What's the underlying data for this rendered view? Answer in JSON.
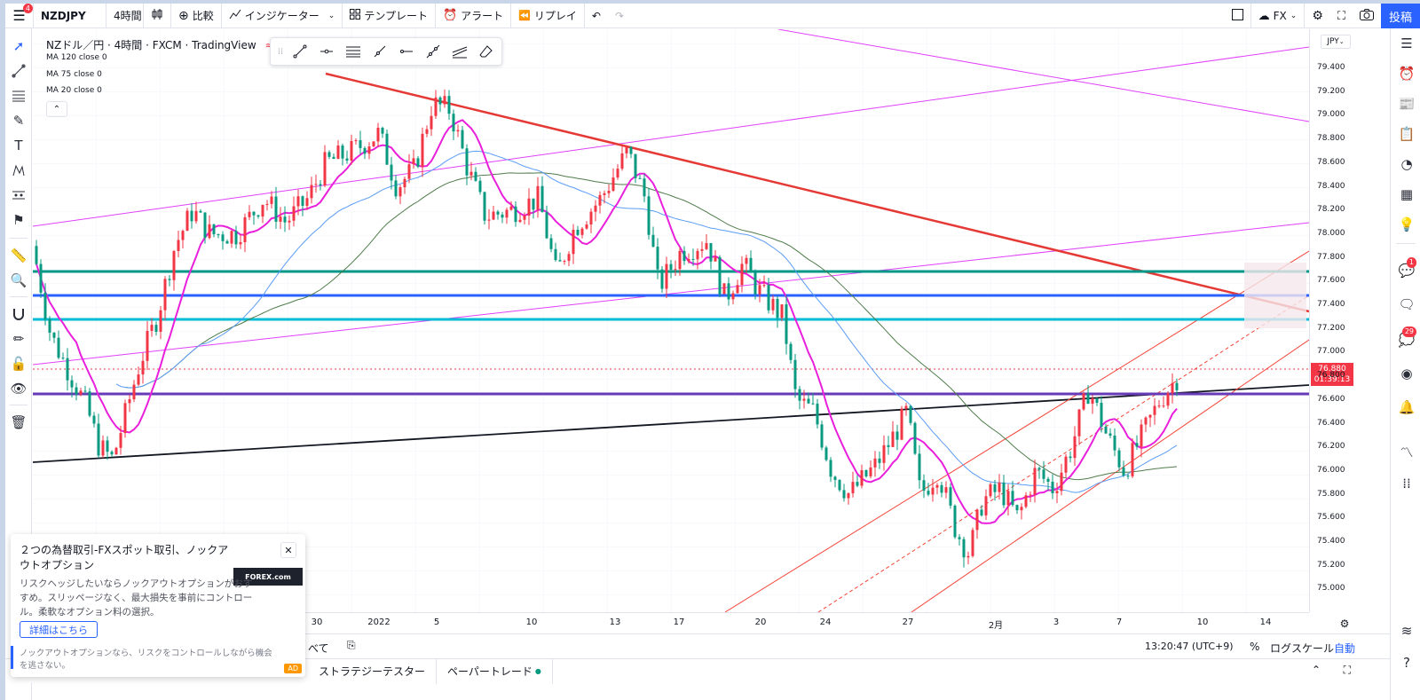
{
  "app": {
    "symbol": "NZDJPY",
    "timeframe": "4時間",
    "menu_badge": "4"
  },
  "toolbar": {
    "compare": "比較",
    "indicators": "インジケーター",
    "templates": "テンプレート",
    "alerts": "アラート",
    "replay": "リプレイ",
    "fx": "FX",
    "publish": "投稿"
  },
  "legend": {
    "title": "NZドル／円 · 4時間 · FXCM · TradingView",
    "ma1": "MA 120 close 0",
    "ma2": "MA 75 close 0",
    "ma3": "MA 20 close 0"
  },
  "price_axis": {
    "currency": "JPY",
    "ticks": [
      "79.400",
      "79.200",
      "79.000",
      "78.800",
      "78.600",
      "78.400",
      "78.200",
      "78.000",
      "77.800",
      "77.600",
      "77.400",
      "77.200",
      "77.000",
      "76.800",
      "76.600",
      "76.400",
      "76.200",
      "76.000",
      "75.800",
      "75.600",
      "75.400",
      "75.200",
      "75.000"
    ],
    "current_price": "76.880",
    "countdown": "01:39:13"
  },
  "time_axis": {
    "ticks": [
      "30",
      "2022",
      "5",
      "10",
      "13",
      "17",
      "20",
      "24",
      "27",
      "2月",
      "3",
      "7",
      "10",
      "14"
    ]
  },
  "range_bar": {
    "all_label": "べて",
    "clock": "13:20:47 (UTC+9)",
    "percent": "%",
    "log_scale": "ログスケール",
    "auto": "自動"
  },
  "bottom_panel": {
    "tab_strategy": "ストラテジーテスター",
    "tab_paper": "ペーパートレード"
  },
  "ad": {
    "title": "２つの為替取引-FXスポット取引、ノックアウトオプション",
    "body": "リスクヘッジしたいならノックアウトオプションがおすすめ。スリッページなく、最大損失を事前にコントロール。柔軟なオプション料の選択。",
    "logo": "FOREX.com",
    "cta": "詳細はこちら",
    "footer": "ノックアウトオプションなら、リスクをコントロールしながら機会を逃さない。",
    "badge": "AD"
  },
  "right_badges": {
    "chat": "1",
    "notifications": "29"
  },
  "colors": {
    "up": "#f23645",
    "down": "#089981",
    "ma20": "#e91fdc",
    "ma75": "#5b9cf6",
    "ma120": "#4f7c4a",
    "trend_red": "#e53935",
    "accent": "#2962ff"
  }
}
